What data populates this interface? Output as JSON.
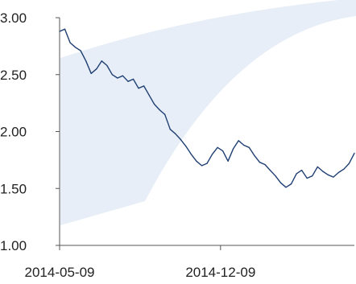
{
  "chart_data": {
    "type": "line",
    "title": "",
    "xlabel": "",
    "ylabel": "",
    "x_ticks": [
      "2014-05-09",
      "2014-12-09"
    ],
    "x_range": [
      "2014-05-09",
      "2015-06-05"
    ],
    "ylim": [
      1.0,
      3.0
    ],
    "y_ticks": [
      "1.00",
      "1.50",
      "2.00",
      "2.50",
      "3.00"
    ],
    "y_tick_values": [
      1.0,
      1.5,
      2.0,
      2.5,
      3.0
    ],
    "grid": false,
    "legend": "none",
    "line_color": "#1f3f73",
    "background_swoosh_color": "#e7eef7",
    "series": [
      {
        "x": [
          "2014-05-09",
          "2014-05-16",
          "2014-05-23",
          "2014-05-30",
          "2014-06-06",
          "2014-06-13",
          "2014-06-20",
          "2014-06-27",
          "2014-07-04",
          "2014-07-11",
          "2014-07-18",
          "2014-07-25",
          "2014-08-01",
          "2014-08-08",
          "2014-08-15",
          "2014-08-22",
          "2014-08-29",
          "2014-09-05",
          "2014-09-12",
          "2014-09-19",
          "2014-09-26",
          "2014-10-03",
          "2014-10-10",
          "2014-10-17",
          "2014-10-24",
          "2014-10-31",
          "2014-11-07",
          "2014-11-14",
          "2014-11-21",
          "2014-11-28",
          "2014-12-05",
          "2014-12-12",
          "2014-12-19",
          "2014-12-26",
          "2015-01-02",
          "2015-01-09",
          "2015-01-16",
          "2015-01-23",
          "2015-01-30",
          "2015-02-06",
          "2015-02-13",
          "2015-02-20",
          "2015-02-27",
          "2015-03-06",
          "2015-03-13",
          "2015-03-20",
          "2015-03-27",
          "2015-04-03",
          "2015-04-10",
          "2015-04-17",
          "2015-04-24",
          "2015-05-01",
          "2015-05-08",
          "2015-05-15",
          "2015-05-22",
          "2015-05-29",
          "2015-06-05"
        ],
        "values": [
          2.88,
          2.9,
          2.78,
          2.74,
          2.71,
          2.62,
          2.51,
          2.55,
          2.62,
          2.58,
          2.5,
          2.47,
          2.49,
          2.44,
          2.46,
          2.38,
          2.4,
          2.32,
          2.24,
          2.19,
          2.15,
          2.02,
          1.98,
          1.93,
          1.87,
          1.8,
          1.74,
          1.7,
          1.72,
          1.8,
          1.86,
          1.83,
          1.74,
          1.85,
          1.92,
          1.88,
          1.86,
          1.79,
          1.73,
          1.71,
          1.66,
          1.61,
          1.55,
          1.51,
          1.54,
          1.63,
          1.66,
          1.59,
          1.61,
          1.69,
          1.65,
          1.62,
          1.6,
          1.64,
          1.67,
          1.72,
          1.81
        ]
      }
    ]
  }
}
